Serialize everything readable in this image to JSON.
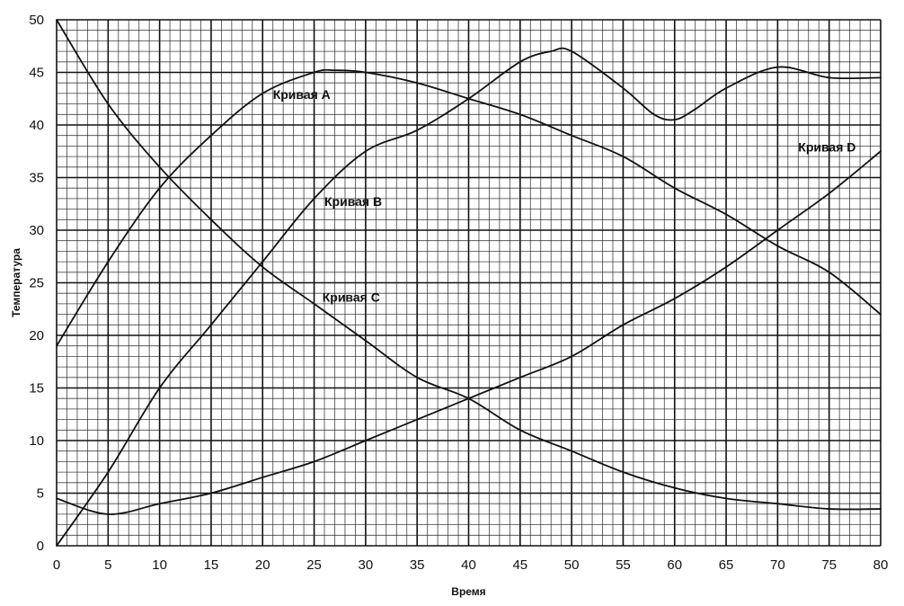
{
  "chart_data": {
    "type": "line",
    "xlabel": "Время",
    "ylabel": "Температура",
    "xlim": [
      0,
      80
    ],
    "ylim": [
      0,
      50
    ],
    "x_ticks": [
      0,
      5,
      10,
      15,
      20,
      25,
      30,
      35,
      40,
      45,
      50,
      55,
      60,
      65,
      70,
      75,
      80
    ],
    "y_ticks": [
      0,
      5,
      10,
      15,
      20,
      25,
      30,
      35,
      40,
      45,
      50
    ],
    "grid": true,
    "series": [
      {
        "name": "Кривая A",
        "label_at": [
          21,
          42.5
        ],
        "points": [
          [
            0,
            19
          ],
          [
            5,
            27
          ],
          [
            10,
            34
          ],
          [
            15,
            39
          ],
          [
            20,
            43
          ],
          [
            25,
            45
          ],
          [
            27,
            45.2
          ],
          [
            30,
            45
          ],
          [
            35,
            44
          ],
          [
            40,
            42.5
          ],
          [
            45,
            41
          ],
          [
            50,
            39
          ],
          [
            55,
            37
          ],
          [
            60,
            34
          ],
          [
            65,
            31.5
          ],
          [
            70,
            28.5
          ],
          [
            75,
            26
          ],
          [
            80,
            22
          ]
        ]
      },
      {
        "name": "Кривая B",
        "label_at": [
          26,
          32.3
        ],
        "points": [
          [
            0,
            0
          ],
          [
            5,
            7
          ],
          [
            10,
            15
          ],
          [
            15,
            21
          ],
          [
            20,
            27
          ],
          [
            25,
            33
          ],
          [
            30,
            37.5
          ],
          [
            35,
            39.5
          ],
          [
            40,
            42.5
          ],
          [
            45,
            46
          ],
          [
            48,
            47
          ],
          [
            50,
            47
          ],
          [
            55,
            43.5
          ],
          [
            58,
            41
          ],
          [
            60,
            40.5
          ],
          [
            62,
            41.5
          ],
          [
            65,
            43.5
          ],
          [
            70,
            45.5
          ],
          [
            75,
            44.5
          ],
          [
            80,
            44.5
          ]
        ]
      },
      {
        "name": "Кривая C",
        "label_at": [
          25.8,
          23.2
        ],
        "points": [
          [
            0,
            50
          ],
          [
            5,
            42
          ],
          [
            10,
            36
          ],
          [
            15,
            31
          ],
          [
            20,
            26.5
          ],
          [
            25,
            23
          ],
          [
            30,
            19.5
          ],
          [
            35,
            16
          ],
          [
            40,
            14
          ],
          [
            45,
            11
          ],
          [
            50,
            9
          ],
          [
            55,
            7
          ],
          [
            60,
            5.5
          ],
          [
            65,
            4.5
          ],
          [
            70,
            4
          ],
          [
            75,
            3.5
          ],
          [
            80,
            3.5
          ]
        ]
      },
      {
        "name": "Кривая D",
        "label_at": [
          72,
          37.5
        ],
        "points": [
          [
            0,
            4.5
          ],
          [
            5,
            3
          ],
          [
            10,
            4
          ],
          [
            15,
            5
          ],
          [
            20,
            6.5
          ],
          [
            25,
            8
          ],
          [
            30,
            10
          ],
          [
            35,
            12
          ],
          [
            40,
            14
          ],
          [
            45,
            16
          ],
          [
            50,
            18
          ],
          [
            55,
            21
          ],
          [
            60,
            23.5
          ],
          [
            65,
            26.5
          ],
          [
            70,
            30
          ],
          [
            75,
            33.5
          ],
          [
            80,
            37.5
          ]
        ]
      }
    ]
  }
}
